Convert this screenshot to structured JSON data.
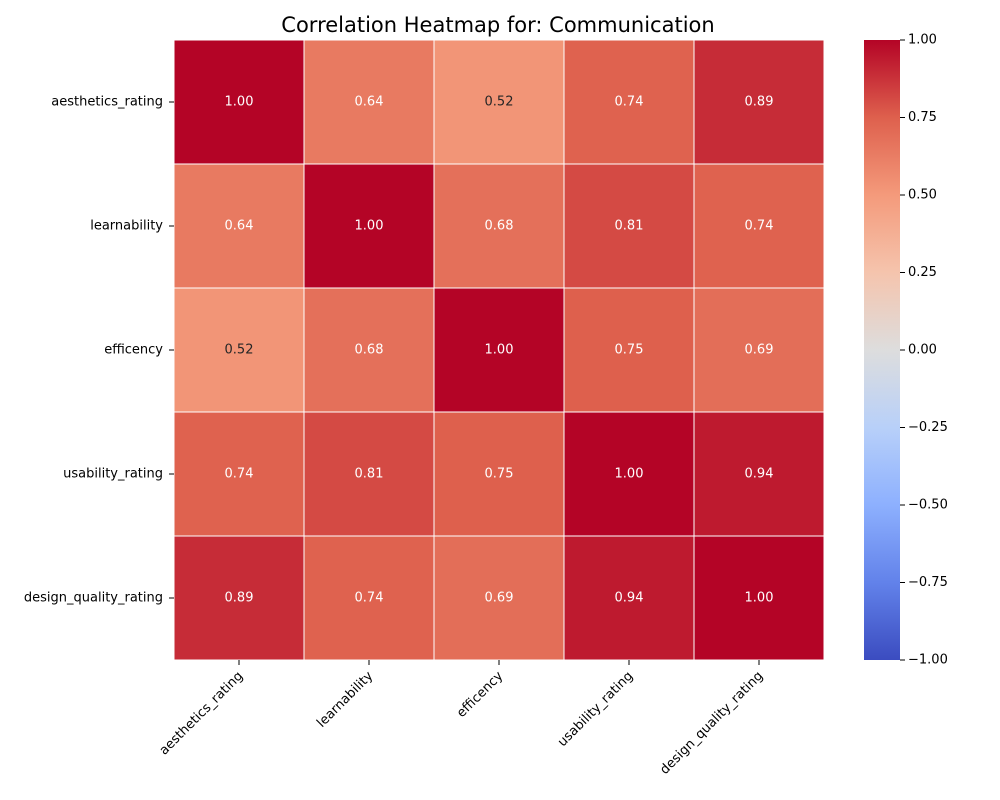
{
  "chart_data": {
    "type": "heatmap",
    "title": "Correlation Heatmap for: Communication",
    "row_labels": [
      "aesthetics_rating",
      "learnability",
      "efficency",
      "usability_rating",
      "design_quality_rating"
    ],
    "col_labels": [
      "aesthetics_rating",
      "learnability",
      "efficency",
      "usability_rating",
      "design_quality_rating"
    ],
    "values": [
      [
        1.0,
        0.64,
        0.52,
        0.74,
        0.89
      ],
      [
        0.64,
        1.0,
        0.68,
        0.81,
        0.74
      ],
      [
        0.52,
        0.68,
        1.0,
        0.75,
        0.69
      ],
      [
        0.74,
        0.81,
        0.75,
        1.0,
        0.94
      ],
      [
        0.89,
        0.74,
        0.69,
        0.94,
        1.0
      ]
    ],
    "value_format": "2 decimals",
    "colormap": "coolwarm",
    "vmin": -1.0,
    "vmax": 1.0,
    "colorbar_ticks": [
      1.0,
      0.75,
      0.5,
      0.25,
      0.0,
      -0.25,
      -0.5,
      -0.75,
      -1.0
    ],
    "colorbar_tick_labels": [
      "1.00",
      "0.75",
      "0.50",
      "0.25",
      "0.00",
      "−0.25",
      "−0.50",
      "−0.75",
      "−1.00"
    ],
    "xlabel": "",
    "ylabel": ""
  }
}
